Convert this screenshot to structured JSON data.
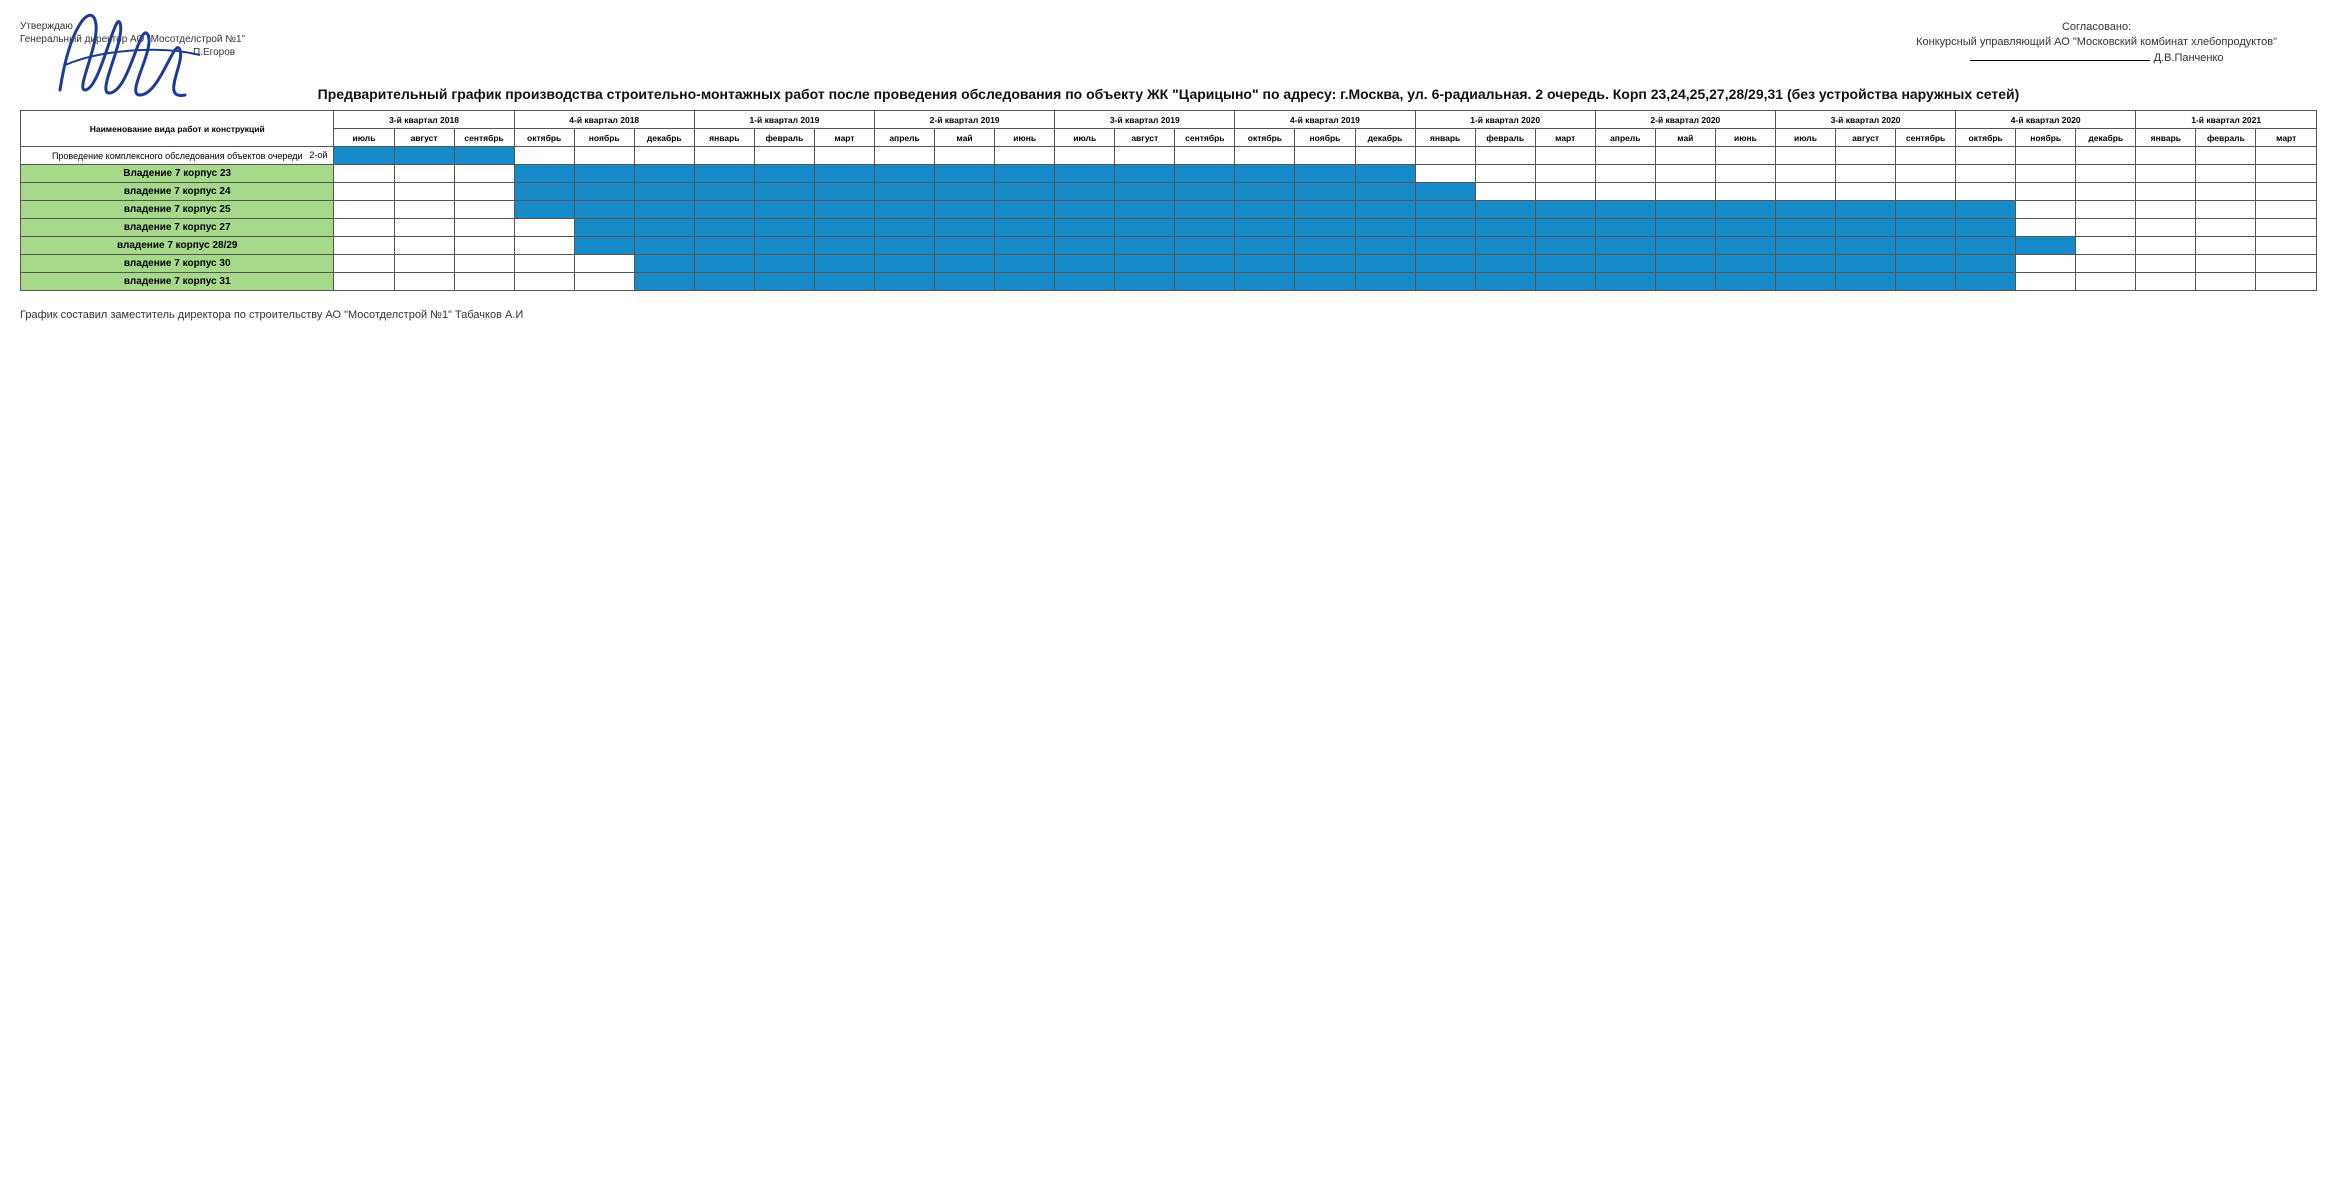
{
  "approval_left": {
    "line1": "Утверждаю",
    "line2": "Генеральный директор АО \"Мосотделстрой №1\"",
    "line3": "П.Егоров"
  },
  "approval_right": {
    "line1": "Согласовано:",
    "line2": "Конкурсный управляющий АО \"Московский комбинат хлебопродуктов\"",
    "line3": "Д.В.Панченко"
  },
  "title": "Предварительный график производства строительно-монтажных работ после проведения обследования по объекту ЖК \"Царицыно\" по адресу: г.Москва, ул. 6-радиальная. 2 очередь. Корп 23,24,25,27,28/29,31 (без устройства наружных сетей)",
  "task_column_header": "Наименование вида работ и конструкций",
  "quarters": [
    "3-й квартал 2018",
    "4-й квартал 2018",
    "1-й квартал 2019",
    "2-й квартал 2019",
    "3-й квартал 2019",
    "4-й квартал 2019",
    "1-й квартал 2020",
    "2-й квартал 2020",
    "3-й квартал 2020",
    "4-й квартал 2020",
    "1-й квартал 2021"
  ],
  "months": [
    "июль",
    "август",
    "сентябрь",
    "октябрь",
    "ноябрь",
    "декабрь",
    "январь",
    "февраль",
    "март",
    "апрель",
    "май",
    "июнь",
    "июль",
    "август",
    "сентябрь",
    "октябрь",
    "ноябрь",
    "декабрь",
    "январь",
    "февраль",
    "март",
    "апрель",
    "май",
    "июнь",
    "июль",
    "август",
    "сентябрь",
    "октябрь",
    "ноябрь",
    "декабрь",
    "январь",
    "февраль",
    "март"
  ],
  "rows": [
    {
      "label": "Проведение комплексного обследования объектов очереди",
      "phase": "2-ой",
      "green": false,
      "survey": true,
      "start": 0,
      "end": 3
    },
    {
      "label": "Владение 7 корпус 23",
      "green": true,
      "start": 3,
      "end": 18
    },
    {
      "label": "владение 7 корпус 24",
      "green": true,
      "start": 3,
      "end": 19
    },
    {
      "label": "владение 7 корпус 25",
      "green": true,
      "start": 3,
      "end": 28
    },
    {
      "label": "владение 7 корпус 27",
      "green": true,
      "start": 4,
      "end": 28
    },
    {
      "label": "владение 7 корпус 28/29",
      "green": true,
      "start": 4,
      "end": 29
    },
    {
      "label": "владение 7 корпус 30",
      "green": true,
      "start": 5,
      "end": 28
    },
    {
      "label": "владение 7 корпус 31",
      "green": true,
      "start": 5,
      "end": 28
    }
  ],
  "colors": {
    "bar": "#178bca",
    "row_green": "#a6d989",
    "border": "#555555",
    "background": "#ffffff",
    "signature": "#1f3a93"
  },
  "footer": "График составил заместитель директора по строительству АО \"Мосотделстрой №1\" Табачков А.И"
}
